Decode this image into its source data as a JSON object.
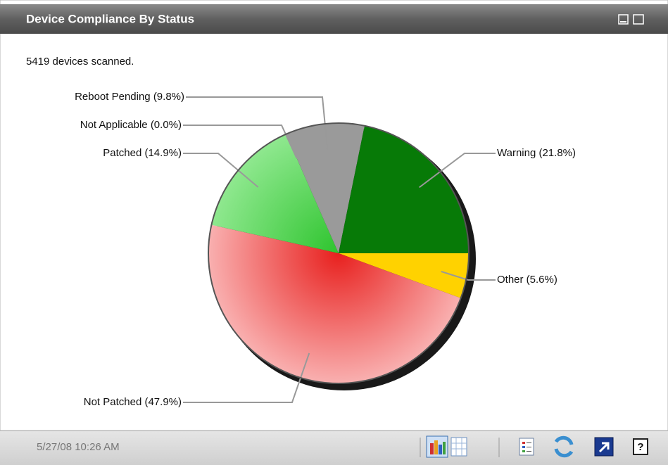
{
  "chart_data": {
    "type": "pie",
    "title": "Device Compliance By Status",
    "subtitle": "5419 devices scanned.",
    "categories": [
      "Other (5.6%)",
      "Not Patched (47.9%)",
      "Patched (14.9%)",
      "Not Applicable (0.0%)",
      "Reboot Pending (9.8%)",
      "Warning (21.8%)"
    ],
    "values": [
      5.6,
      47.9,
      14.9,
      0.0,
      9.8,
      21.8
    ],
    "colors": [
      "#ffd200",
      "#e8201e",
      "#2ec42e",
      "#3a6fd8",
      "#9a9a9a",
      "#077a07"
    ]
  },
  "footer": {
    "timestamp": "5/27/08 10:26 AM"
  }
}
